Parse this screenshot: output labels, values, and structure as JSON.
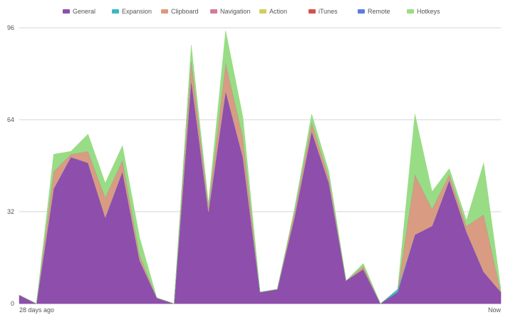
{
  "chart_data": {
    "type": "area",
    "stacked": true,
    "legend_position": "top",
    "grid": true,
    "ylim": [
      0,
      96
    ],
    "yticks": [
      0,
      32,
      64,
      96
    ],
    "x_start_label": "28 days ago",
    "x_end_label": "Now",
    "x": [
      0,
      1,
      2,
      3,
      4,
      5,
      6,
      7,
      8,
      9,
      10,
      11,
      12,
      13,
      14,
      15,
      16,
      17,
      18,
      19,
      20,
      21,
      22,
      23,
      24,
      25,
      26,
      27,
      28
    ],
    "series": [
      {
        "name": "General",
        "color": "#8e4eac",
        "values": [
          3,
          0,
          40,
          51,
          49,
          30,
          46,
          15,
          2,
          0,
          78,
          32,
          74,
          51,
          4,
          5,
          30,
          60,
          42,
          8,
          12,
          0,
          4,
          24,
          27,
          43,
          25,
          11,
          4
        ]
      },
      {
        "name": "Expansion",
        "color": "#3bb8c9",
        "values": [
          0,
          0,
          0,
          0,
          0,
          0,
          0,
          0,
          0,
          0,
          0,
          0,
          0,
          0,
          0,
          0,
          0,
          0,
          0,
          0,
          0,
          0,
          1,
          0,
          0,
          0,
          0,
          0,
          0
        ]
      },
      {
        "name": "Clipboard",
        "color": "#d99b82",
        "values": [
          0,
          0,
          6,
          1,
          4,
          7,
          4,
          2,
          0,
          0,
          7,
          2,
          10,
          7,
          0,
          0,
          2,
          3,
          2,
          0,
          1,
          0,
          0,
          21,
          6,
          2,
          2,
          20,
          0
        ]
      },
      {
        "name": "Navigation",
        "color": "#d27b9e",
        "values": [
          0,
          0,
          0,
          0,
          0,
          0,
          0,
          0,
          0,
          0,
          0,
          0,
          0,
          0,
          0,
          0,
          0,
          0,
          0,
          0,
          0,
          0,
          0,
          0,
          0,
          0,
          0,
          0,
          0
        ]
      },
      {
        "name": "Action",
        "color": "#d4cc5e",
        "values": [
          0,
          0,
          0,
          0,
          0,
          0,
          0,
          0,
          0,
          0,
          0,
          0,
          0,
          0,
          0,
          0,
          0,
          0,
          0,
          0,
          0,
          0,
          0,
          0,
          0,
          0,
          0,
          0,
          0
        ]
      },
      {
        "name": "iTunes",
        "color": "#d64f4f",
        "values": [
          0,
          0,
          0,
          0,
          0,
          0,
          0,
          0,
          0,
          0,
          0,
          0,
          0,
          0,
          0,
          0,
          0,
          0,
          0,
          0,
          0,
          0,
          0,
          0,
          0,
          0,
          0,
          0,
          0
        ]
      },
      {
        "name": "Remote",
        "color": "#5b7de0",
        "values": [
          0,
          0,
          0,
          0,
          0,
          0,
          0,
          0,
          0,
          0,
          0,
          0,
          0,
          0,
          0,
          0,
          0,
          0,
          0,
          0,
          0,
          0,
          0,
          0,
          0,
          0,
          0,
          0,
          0
        ]
      },
      {
        "name": "Hotkeys",
        "color": "#98dd85",
        "values": [
          0,
          0,
          6,
          1,
          6,
          5,
          5,
          6,
          0,
          0,
          5,
          1,
          11,
          7,
          0,
          0,
          1,
          3,
          2,
          0,
          1,
          0,
          0,
          21,
          6,
          2,
          2,
          18,
          1
        ]
      }
    ]
  }
}
